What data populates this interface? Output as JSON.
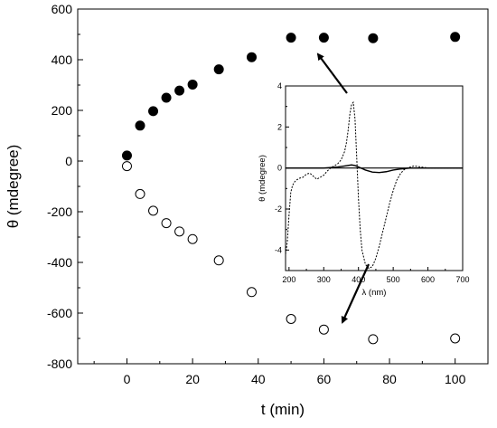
{
  "chart_data": [
    {
      "type": "scatter",
      "xlabel": "t (min)",
      "ylabel": "θ (mdegree)",
      "xlim": [
        -15,
        110
      ],
      "ylim": [
        -800,
        600
      ],
      "xticks": [
        0,
        20,
        40,
        60,
        80,
        100
      ],
      "yticks": [
        -800,
        -600,
        -400,
        -200,
        0,
        200,
        400,
        600
      ],
      "grid": false,
      "series": [
        {
          "marker": "filled-circle",
          "x": [
            0,
            4,
            8,
            12,
            16,
            20,
            28,
            38,
            50,
            60,
            75,
            100
          ],
          "y": [
            22,
            140,
            197,
            250,
            278,
            302,
            362,
            410,
            487,
            487,
            485,
            490
          ]
        },
        {
          "marker": "open-circle",
          "x": [
            0,
            4,
            8,
            12,
            16,
            20,
            28,
            38,
            50,
            60,
            75,
            100
          ],
          "y": [
            -20,
            -130,
            -196,
            -245,
            -278,
            -308,
            -392,
            -517,
            -623,
            -665,
            -703,
            -700
          ]
        }
      ]
    },
    {
      "type": "line",
      "xlabel": "λ (nm)",
      "ylabel": "θ (mdegree)",
      "xlim": [
        190,
        700
      ],
      "ylim": [
        -5,
        4
      ],
      "xticks": [
        200,
        300,
        400,
        500,
        600,
        700
      ],
      "yticks": [
        -4,
        -2,
        0,
        2,
        4
      ],
      "series": [
        {
          "style": "dashed",
          "x": [
            190,
            195,
            200,
            205,
            210,
            215,
            220,
            230,
            240,
            250,
            260,
            270,
            280,
            290,
            300,
            310,
            320,
            330,
            340,
            350,
            360,
            365,
            370,
            375,
            380,
            385,
            390,
            395,
            400,
            405,
            410,
            420,
            430,
            440,
            450,
            460,
            470,
            480,
            490,
            500,
            510,
            520,
            530,
            540,
            550,
            560,
            580,
            600,
            650,
            700
          ],
          "y": [
            -4.2,
            -3.6,
            -2.3,
            -1.2,
            -0.85,
            -0.7,
            -0.6,
            -0.5,
            -0.45,
            -0.3,
            -0.25,
            -0.4,
            -0.55,
            -0.45,
            -0.35,
            -0.15,
            0.0,
            0.1,
            0.2,
            0.4,
            0.8,
            1.2,
            1.8,
            2.6,
            3.1,
            3.2,
            2.4,
            0.5,
            -1.5,
            -3.0,
            -4.0,
            -4.7,
            -4.9,
            -4.8,
            -4.4,
            -3.8,
            -3.1,
            -2.4,
            -1.7,
            -1.1,
            -0.6,
            -0.3,
            -0.1,
            0.0,
            0.05,
            0.1,
            0.05,
            0.0,
            0.0,
            0.0
          ]
        },
        {
          "style": "solid",
          "x": [
            190,
            250,
            300,
            340,
            360,
            380,
            390,
            400,
            420,
            440,
            460,
            480,
            500,
            520,
            550,
            600,
            650,
            700
          ],
          "y": [
            0,
            0,
            0,
            0.05,
            0.1,
            0.15,
            0.12,
            0.05,
            -0.1,
            -0.2,
            -0.22,
            -0.18,
            -0.1,
            -0.05,
            0,
            0,
            0,
            0
          ]
        }
      ]
    }
  ]
}
